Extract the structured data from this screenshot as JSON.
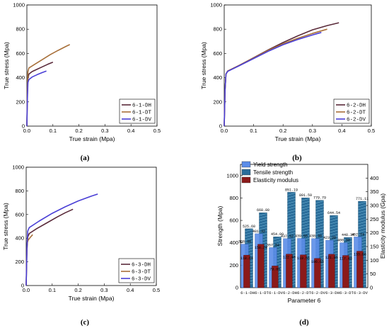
{
  "chart_data": [
    {
      "type": "line",
      "panel_label": "(a)",
      "xlabel": "True strain (Mpa)",
      "ylabel": "True stress (Mpa)",
      "xlim": [
        0,
        0.5
      ],
      "ylim": [
        0,
        1000
      ],
      "xticks": [
        "0.0",
        "0.1",
        "0.2",
        "0.3",
        "0.4",
        "0.5"
      ],
      "yticks": [
        "0",
        "200",
        "400",
        "600",
        "800",
        "1000"
      ],
      "legend_position": "bottom-right",
      "series": [
        {
          "name": "6-1-DH",
          "color": "#5a2a3a",
          "points": [
            [
              0,
              0
            ],
            [
              0.002,
              260
            ],
            [
              0.004,
              395
            ],
            [
              0.008,
              430
            ],
            [
              0.02,
              450
            ],
            [
              0.04,
              470
            ],
            [
              0.06,
              490
            ],
            [
              0.08,
              510
            ],
            [
              0.1,
              528
            ]
          ]
        },
        {
          "name": "6-1-DT",
          "color": "#a8703a",
          "points": [
            [
              0,
              0
            ],
            [
              0.002,
              300
            ],
            [
              0.004,
              450
            ],
            [
              0.008,
              480
            ],
            [
              0.03,
              510
            ],
            [
              0.06,
              550
            ],
            [
              0.09,
              590
            ],
            [
              0.12,
              625
            ],
            [
              0.15,
              658
            ],
            [
              0.165,
              673
            ]
          ]
        },
        {
          "name": "6-1-DV",
          "color": "#4a3fd6",
          "points": [
            [
              0,
              0
            ],
            [
              0.002,
              220
            ],
            [
              0.004,
              360
            ],
            [
              0.008,
              385
            ],
            [
              0.02,
              405
            ],
            [
              0.04,
              425
            ],
            [
              0.06,
              443
            ],
            [
              0.075,
              455
            ]
          ]
        }
      ]
    },
    {
      "type": "line",
      "panel_label": "(b)",
      "xlabel": "True strain (Mpa)",
      "ylabel": "True stress (Mpa)",
      "xlim": [
        0,
        0.5
      ],
      "ylim": [
        0,
        1000
      ],
      "xticks": [
        "0.0",
        "0.1",
        "0.2",
        "0.3",
        "0.4",
        "0.5"
      ],
      "yticks": [
        "0",
        "200",
        "400",
        "600",
        "800",
        "1000"
      ],
      "legend_position": "bottom-right",
      "series": [
        {
          "name": "6-2-DH",
          "color": "#5a2a3a",
          "points": [
            [
              0,
              0
            ],
            [
              0.003,
              300
            ],
            [
              0.006,
              430
            ],
            [
              0.012,
              455
            ],
            [
              0.05,
              500
            ],
            [
              0.1,
              565
            ],
            [
              0.15,
              630
            ],
            [
              0.2,
              690
            ],
            [
              0.25,
              745
            ],
            [
              0.3,
              795
            ],
            [
              0.35,
              830
            ],
            [
              0.39,
              853
            ]
          ]
        },
        {
          "name": "6-2-DT",
          "color": "#a8703a",
          "points": [
            [
              0,
              0
            ],
            [
              0.003,
              300
            ],
            [
              0.006,
              430
            ],
            [
              0.012,
              455
            ],
            [
              0.05,
              500
            ],
            [
              0.1,
              562
            ],
            [
              0.15,
              625
            ],
            [
              0.2,
              680
            ],
            [
              0.25,
              725
            ],
            [
              0.3,
              765
            ],
            [
              0.35,
              800
            ]
          ]
        },
        {
          "name": "6-2-DV",
          "color": "#4a3fd6",
          "points": [
            [
              0,
              0
            ],
            [
              0.003,
              300
            ],
            [
              0.006,
              430
            ],
            [
              0.012,
              452
            ],
            [
              0.05,
              497
            ],
            [
              0.1,
              558
            ],
            [
              0.15,
              618
            ],
            [
              0.2,
              672
            ],
            [
              0.25,
              715
            ],
            [
              0.3,
              752
            ],
            [
              0.33,
              773
            ]
          ]
        }
      ]
    },
    {
      "type": "line",
      "panel_label": "(c)",
      "xlabel": "True strain (Mpa)",
      "ylabel": "True stress (Mpa)",
      "xlim": [
        0,
        0.5
      ],
      "ylim": [
        0,
        1000
      ],
      "xticks": [
        "0.0",
        "0.1",
        "0.2",
        "0.3",
        "0.4",
        "0.5"
      ],
      "yticks": [
        "0",
        "200",
        "400",
        "600",
        "800",
        "1000"
      ],
      "legend_position": "bottom-right",
      "series": [
        {
          "name": "6-3-DH",
          "color": "#5a2a3a",
          "points": [
            [
              0,
              0
            ],
            [
              0.003,
              300
            ],
            [
              0.006,
              410
            ],
            [
              0.012,
              440
            ],
            [
              0.04,
              480
            ],
            [
              0.08,
              530
            ],
            [
              0.12,
              580
            ],
            [
              0.15,
              615
            ],
            [
              0.18,
              645
            ]
          ]
        },
        {
          "name": "6-3-DT",
          "color": "#a8703a",
          "points": [
            [
              0,
              0
            ],
            [
              0.002,
              250
            ],
            [
              0.004,
              360
            ],
            [
              0.008,
              385
            ],
            [
              0.015,
              405
            ],
            [
              0.025,
              430
            ]
          ]
        },
        {
          "name": "6-3-DV",
          "color": "#4a3fd6",
          "points": [
            [
              0,
              0
            ],
            [
              0.003,
              320
            ],
            [
              0.006,
              460
            ],
            [
              0.012,
              490
            ],
            [
              0.05,
              545
            ],
            [
              0.1,
              610
            ],
            [
              0.15,
              665
            ],
            [
              0.2,
              715
            ],
            [
              0.25,
              755
            ],
            [
              0.275,
              773
            ]
          ]
        }
      ]
    },
    {
      "type": "bar",
      "panel_label": "(d)",
      "xlabel": "Parameter 6",
      "ylabel": "Strength (Mpa)",
      "y2label": "Elasticity modulus (Gpa)",
      "ylim": [
        0,
        1100
      ],
      "y2lim": [
        0,
        450
      ],
      "yticks": [
        "0",
        "200",
        "400",
        "600",
        "800",
        "1000"
      ],
      "y2ticks": [
        "0",
        "50",
        "100",
        "150",
        "200",
        "250",
        "300",
        "350",
        "400"
      ],
      "legend_position": "top-left",
      "categories": [
        "6-1-DH",
        "6-1-DT",
        "6-1-DV",
        "6-2-DH",
        "6-2-DT",
        "6-2-DV",
        "6-3-DH",
        "6-3-DT",
        "6-3-DV"
      ],
      "series": [
        {
          "name": "Yield strength",
          "color": "#5b8de8",
          "axis": "left",
          "values": [
            388.48,
            481.32,
            357.84,
            437.52,
            439.56,
            438.4,
            423.28,
            400.88,
            452.74
          ],
          "labels": [
            "388.48",
            "481.32",
            "357.84",
            "437.52",
            "439.56",
            "438.40",
            "423.28",
            "400.88",
            "452.74"
          ]
        },
        {
          "name": "Tensile strength",
          "color": "#2a6d9a",
          "axis": "left",
          "values": [
            525.6,
            668.8,
            454.0,
            851.19,
            801.59,
            779.79,
            644.54,
            448.34,
            771.11
          ],
          "labels": [
            "525.60",
            "668.80",
            "454.00",
            "851.19",
            "801.59",
            "779.79",
            "644.54",
            "448.34",
            "771.11"
          ]
        },
        {
          "name": "Elasticity modulus",
          "color": "#8b1a1a",
          "axis": "right",
          "values": [
            118.64,
            158.24,
            79.06,
            122.4,
            119.56,
            106.65,
            121.85,
            117.4,
            133.06
          ],
          "labels": [
            "118.64",
            "158.24",
            "79.06",
            "122.40",
            "119.56",
            "106.65",
            "121.85",
            "117.40",
            "133.06"
          ]
        }
      ]
    }
  ]
}
